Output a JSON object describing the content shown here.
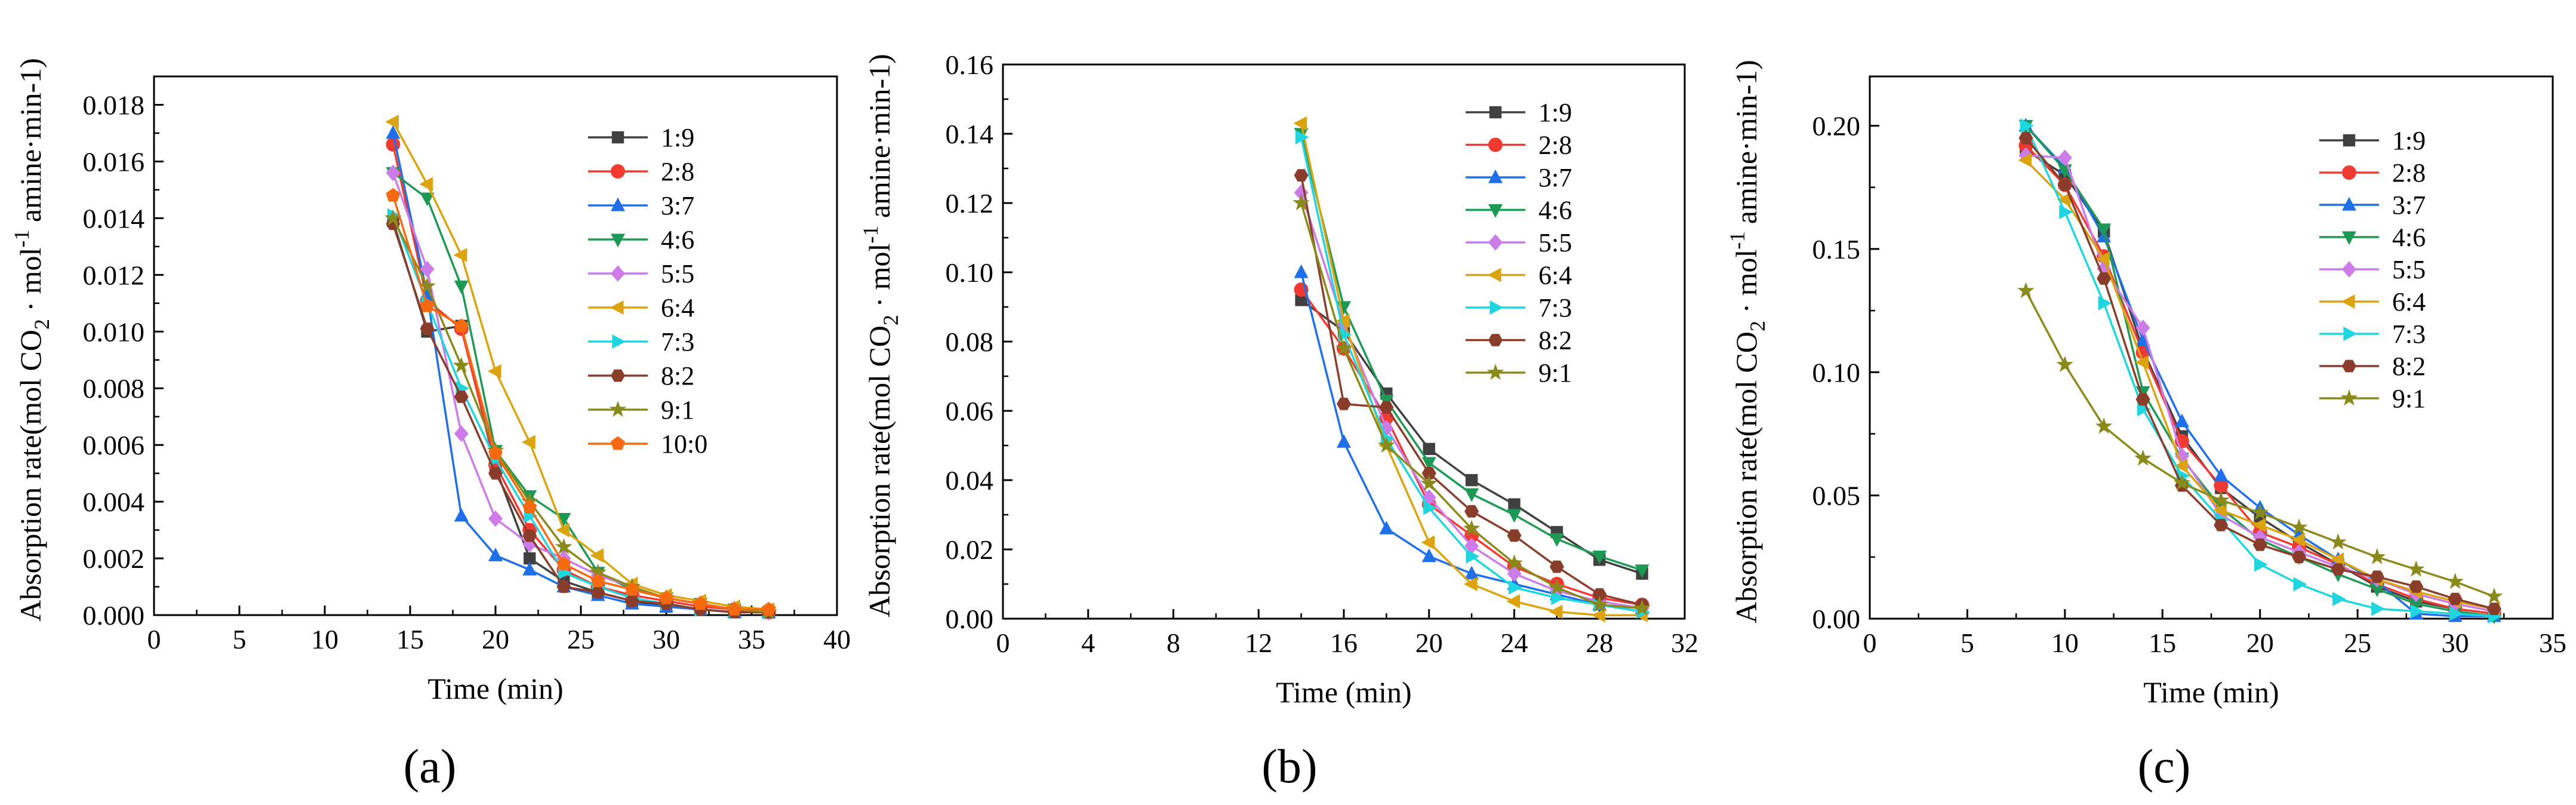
{
  "figure_labels": [
    "(a)",
    "(b)",
    "(c)"
  ],
  "colors": {
    "1:9": "#404040",
    "2:8": "#f03a32",
    "3:7": "#1f6fe8",
    "4:6": "#1c9a55",
    "5:5": "#cc7be8",
    "6:4": "#dba40e",
    "7:3": "#1ed6e0",
    "8:2": "#8a3d2a",
    "9:1": "#8a8a1a",
    "10:0": "#f76a10"
  },
  "markers": {
    "1:9": "square",
    "2:8": "circle",
    "3:7": "triangle-up",
    "4:6": "triangle-down",
    "5:5": "diamond",
    "6:4": "triangle-left",
    "7:3": "triangle-right",
    "8:2": "hexagon",
    "9:1": "star",
    "10:0": "pentagon"
  },
  "chart_data": [
    {
      "type": "line",
      "panel": "(a)",
      "xlabel": "Time (min)",
      "ylabel": "Absorption rate(mol CO2 · mol-1 amine·min-1)",
      "xlim": [
        0,
        40
      ],
      "ylim": [
        0,
        0.019
      ],
      "xticks": [
        0,
        5,
        10,
        15,
        20,
        25,
        30,
        35,
        40
      ],
      "yticks": [
        0.0,
        0.002,
        0.004,
        0.006,
        0.008,
        0.01,
        0.012,
        0.014,
        0.016,
        0.018
      ],
      "ytick_labels": [
        "0.000",
        "0.002",
        "0.004",
        "0.006",
        "0.008",
        "0.010",
        "0.012",
        "0.014",
        "0.016",
        "0.018"
      ],
      "legend": "top-right",
      "series": [
        {
          "name": "1:9",
          "x": [
            14,
            16,
            18,
            20,
            22,
            24,
            26,
            28,
            30,
            32,
            34,
            36
          ],
          "y": [
            0.0139,
            0.01,
            0.0102,
            0.0052,
            0.002,
            0.0012,
            0.0008,
            0.0005,
            0.0003,
            0.0002,
            0.0001,
            0.0001
          ]
        },
        {
          "name": "2:8",
          "x": [
            14,
            16,
            18,
            20,
            22,
            24,
            26,
            28,
            30,
            32,
            34,
            36
          ],
          "y": [
            0.0166,
            0.0111,
            0.0101,
            0.0053,
            0.003,
            0.0016,
            0.001,
            0.0007,
            0.0005,
            0.0003,
            0.0002,
            0.0001
          ]
        },
        {
          "name": "3:7",
          "x": [
            14,
            16,
            18,
            20,
            22,
            24,
            26,
            28,
            30,
            32,
            34,
            36
          ],
          "y": [
            0.017,
            0.0113,
            0.0035,
            0.0021,
            0.0016,
            0.001,
            0.0007,
            0.0004,
            0.0003,
            0.0002,
            0.0001,
            0.0001
          ]
        },
        {
          "name": "4:6",
          "x": [
            14,
            16,
            18,
            20,
            22,
            24,
            26,
            28,
            30,
            32,
            34,
            36
          ],
          "y": [
            0.0156,
            0.0147,
            0.0116,
            0.0058,
            0.0042,
            0.0034,
            0.0015,
            0.0009,
            0.0006,
            0.0004,
            0.0002,
            0.0001
          ]
        },
        {
          "name": "5:5",
          "x": [
            14,
            16,
            18,
            20,
            22,
            24,
            26,
            28,
            30,
            32,
            34,
            36
          ],
          "y": [
            0.0156,
            0.0122,
            0.0064,
            0.0034,
            0.0025,
            0.002,
            0.0014,
            0.001,
            0.0006,
            0.0004,
            0.0002,
            0.0001
          ]
        },
        {
          "name": "6:4",
          "x": [
            14,
            16,
            18,
            20,
            22,
            24,
            26,
            28,
            30,
            32,
            34,
            36
          ],
          "y": [
            0.0174,
            0.0152,
            0.0127,
            0.0086,
            0.0061,
            0.003,
            0.0021,
            0.0011,
            0.0007,
            0.0005,
            0.0003,
            0.0002
          ]
        },
        {
          "name": "7:3",
          "x": [
            14,
            16,
            18,
            20,
            22,
            24,
            26,
            28,
            30,
            32,
            34,
            36
          ],
          "y": [
            0.0141,
            0.011,
            0.008,
            0.0055,
            0.0035,
            0.0015,
            0.001,
            0.0006,
            0.0004,
            0.0002,
            0.0001,
            0.0001
          ]
        },
        {
          "name": "8:2",
          "x": [
            14,
            16,
            18,
            20,
            22,
            24,
            26,
            28,
            30,
            32,
            34,
            36
          ],
          "y": [
            0.0138,
            0.0101,
            0.0077,
            0.005,
            0.0028,
            0.001,
            0.0008,
            0.0005,
            0.0004,
            0.0002,
            0.0001,
            0.0001
          ]
        },
        {
          "name": "9:1",
          "x": [
            14,
            16,
            18,
            20,
            22,
            24,
            26,
            28,
            30,
            32,
            34,
            36
          ],
          "y": [
            0.014,
            0.0116,
            0.0088,
            0.0058,
            0.004,
            0.0024,
            0.0015,
            0.001,
            0.0006,
            0.0004,
            0.0002,
            0.0001
          ]
        },
        {
          "name": "10:0",
          "x": [
            14,
            16,
            18,
            20,
            22,
            24,
            26,
            28,
            30,
            32,
            34,
            36
          ],
          "y": [
            0.0148,
            0.0109,
            0.0102,
            0.0057,
            0.0038,
            0.0018,
            0.0012,
            0.0009,
            0.0006,
            0.0004,
            0.0002,
            0.0002
          ]
        }
      ]
    },
    {
      "type": "line",
      "panel": "(b)",
      "xlabel": "Time (min)",
      "ylabel": "Absorption rate(mol CO2 · mol-1 amine·min-1)",
      "xlim": [
        0,
        32
      ],
      "ylim": [
        0,
        0.16
      ],
      "xticks": [
        0,
        4,
        8,
        12,
        16,
        20,
        24,
        28,
        32
      ],
      "yticks": [
        0.0,
        0.02,
        0.04,
        0.06,
        0.08,
        0.1,
        0.12,
        0.14,
        0.16
      ],
      "ytick_labels": [
        "0.00",
        "0.02",
        "0.04",
        "0.06",
        "0.08",
        "0.10",
        "0.12",
        "0.14",
        "0.16"
      ],
      "legend": "top-right",
      "series": [
        {
          "name": "1:9",
          "x": [
            14,
            16,
            18,
            20,
            22,
            24,
            26,
            28,
            30
          ],
          "y": [
            0.092,
            0.083,
            0.065,
            0.049,
            0.04,
            0.033,
            0.025,
            0.017,
            0.013
          ]
        },
        {
          "name": "2:8",
          "x": [
            14,
            16,
            18,
            20,
            22,
            24,
            26,
            28,
            30
          ],
          "y": [
            0.095,
            0.078,
            0.058,
            0.033,
            0.024,
            0.015,
            0.01,
            0.006,
            0.004
          ]
        },
        {
          "name": "3:7",
          "x": [
            14,
            16,
            18,
            20,
            22,
            24,
            26,
            28,
            30
          ],
          "y": [
            0.1,
            0.051,
            0.026,
            0.018,
            0.013,
            0.01,
            0.007,
            0.004,
            0.003
          ]
        },
        {
          "name": "4:6",
          "x": [
            14,
            16,
            18,
            20,
            22,
            24,
            26,
            28,
            30
          ],
          "y": [
            0.14,
            0.09,
            0.063,
            0.045,
            0.036,
            0.03,
            0.023,
            0.018,
            0.014
          ]
        },
        {
          "name": "5:5",
          "x": [
            14,
            16,
            18,
            20,
            22,
            24,
            26,
            28,
            30
          ],
          "y": [
            0.123,
            0.085,
            0.055,
            0.035,
            0.021,
            0.013,
            0.008,
            0.005,
            0.003
          ]
        },
        {
          "name": "6:4",
          "x": [
            14,
            16,
            18,
            20,
            22,
            24,
            26,
            28,
            30
          ],
          "y": [
            0.143,
            0.086,
            0.05,
            0.022,
            0.01,
            0.005,
            0.002,
            0.001,
            0.001
          ]
        },
        {
          "name": "7:3",
          "x": [
            14,
            16,
            18,
            20,
            22,
            24,
            26,
            28,
            30
          ],
          "y": [
            0.139,
            0.082,
            0.052,
            0.032,
            0.018,
            0.009,
            0.006,
            0.004,
            0.002
          ]
        },
        {
          "name": "8:2",
          "x": [
            14,
            16,
            18,
            20,
            22,
            24,
            26,
            28,
            30
          ],
          "y": [
            0.128,
            0.062,
            0.061,
            0.042,
            0.031,
            0.024,
            0.015,
            0.007,
            0.004
          ]
        },
        {
          "name": "9:1",
          "x": [
            14,
            16,
            18,
            20,
            22,
            24,
            26,
            28,
            30
          ],
          "y": [
            0.12,
            0.078,
            0.05,
            0.039,
            0.026,
            0.016,
            0.009,
            0.004,
            0.003
          ]
        }
      ]
    },
    {
      "type": "line",
      "panel": "(c)",
      "xlabel": "Time (min)",
      "ylabel": "Absorption rate(mol CO2 · mol-1 amine·min-1)",
      "xlim": [
        0,
        35
      ],
      "ylim": [
        0,
        0.22
      ],
      "xticks": [
        0,
        5,
        10,
        15,
        20,
        25,
        30,
        35
      ],
      "yticks": [
        0.0,
        0.05,
        0.1,
        0.15,
        0.2
      ],
      "ytick_labels": [
        "0.00",
        "0.05",
        "0.10",
        "0.15",
        "0.20"
      ],
      "legend": "top-right",
      "series": [
        {
          "name": "1:9",
          "x": [
            8,
            10,
            12,
            14,
            16,
            18,
            20,
            22,
            24,
            26,
            28,
            30,
            32
          ],
          "y": [
            0.19,
            0.18,
            0.157,
            0.109,
            0.074,
            0.053,
            0.041,
            0.031,
            0.022,
            0.013,
            0.007,
            0.004,
            0.002
          ]
        },
        {
          "name": "2:8",
          "x": [
            8,
            10,
            12,
            14,
            16,
            18,
            20,
            22,
            24,
            26,
            28,
            30,
            32
          ],
          "y": [
            0.192,
            0.176,
            0.147,
            0.108,
            0.072,
            0.054,
            0.035,
            0.029,
            0.022,
            0.014,
            0.008,
            0.004,
            0.002
          ]
        },
        {
          "name": "3:7",
          "x": [
            8,
            10,
            12,
            14,
            16,
            18,
            20,
            22,
            24,
            26,
            28,
            30,
            32
          ],
          "y": [
            0.2,
            0.183,
            0.155,
            0.113,
            0.08,
            0.058,
            0.045,
            0.034,
            0.024,
            0.015,
            0.002,
            0.001,
            0.001
          ]
        },
        {
          "name": "4:6",
          "x": [
            8,
            10,
            12,
            14,
            16,
            18,
            20,
            22,
            24,
            26,
            28,
            30,
            32
          ],
          "y": [
            0.2,
            0.182,
            0.158,
            0.092,
            0.065,
            0.045,
            0.032,
            0.025,
            0.018,
            0.012,
            0.006,
            0.003,
            0.001
          ]
        },
        {
          "name": "5:5",
          "x": [
            8,
            10,
            12,
            14,
            16,
            18,
            20,
            22,
            24,
            26,
            28,
            30,
            32
          ],
          "y": [
            0.188,
            0.187,
            0.142,
            0.118,
            0.066,
            0.042,
            0.033,
            0.027,
            0.021,
            0.016,
            0.01,
            0.006,
            0.003
          ]
        },
        {
          "name": "6:4",
          "x": [
            8,
            10,
            12,
            14,
            16,
            18,
            20,
            22,
            24,
            26,
            28,
            30,
            32
          ],
          "y": [
            0.186,
            0.17,
            0.146,
            0.104,
            0.062,
            0.044,
            0.038,
            0.032,
            0.024,
            0.016,
            0.011,
            0.007,
            0.004
          ]
        },
        {
          "name": "7:3",
          "x": [
            8,
            10,
            12,
            14,
            16,
            18,
            20,
            22,
            24,
            26,
            28,
            30,
            32
          ],
          "y": [
            0.2,
            0.165,
            0.128,
            0.085,
            0.058,
            0.04,
            0.022,
            0.014,
            0.008,
            0.004,
            0.003,
            0.002,
            0.001
          ]
        },
        {
          "name": "8:2",
          "x": [
            8,
            10,
            12,
            14,
            16,
            18,
            20,
            22,
            24,
            26,
            28,
            30,
            32
          ],
          "y": [
            0.195,
            0.176,
            0.138,
            0.089,
            0.054,
            0.038,
            0.03,
            0.025,
            0.02,
            0.017,
            0.013,
            0.008,
            0.004
          ]
        },
        {
          "name": "9:1",
          "x": [
            8,
            10,
            12,
            14,
            16,
            18,
            20,
            22,
            24,
            26,
            28,
            30,
            32
          ],
          "y": [
            0.133,
            0.103,
            0.078,
            0.065,
            0.055,
            0.048,
            0.043,
            0.037,
            0.031,
            0.025,
            0.02,
            0.015,
            0.009
          ]
        }
      ]
    }
  ]
}
